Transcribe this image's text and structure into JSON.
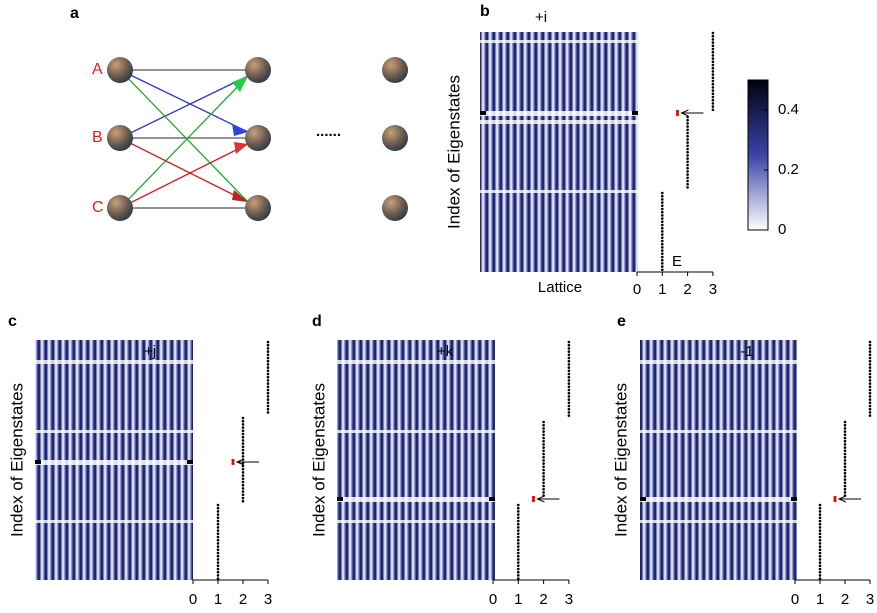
{
  "panel_a": {
    "label": "a",
    "nodes": [
      "A",
      "B",
      "C"
    ],
    "ellipsis": "......"
  },
  "panels": [
    {
      "label": "b",
      "title": "+i",
      "ylabel": "Index of Eigenstates",
      "xlabel": "Lattice",
      "energy_label": "E",
      "xticks": [
        0,
        1,
        2,
        3
      ]
    },
    {
      "label": "c",
      "title": "+j",
      "ylabel": "Index of Eigenstates",
      "xticks": [
        0,
        1,
        2,
        3
      ]
    },
    {
      "label": "d",
      "title": "+k",
      "ylabel": "Index of Eigenstates",
      "xticks": [
        0,
        1,
        2,
        3
      ]
    },
    {
      "label": "e",
      "title": "-1",
      "ylabel": "Index of Eigenstates",
      "xticks": [
        0,
        1,
        2,
        3
      ]
    }
  ],
  "colorbar": {
    "range": [
      0,
      0.5
    ],
    "ticks": [
      0,
      0.2,
      0.4
    ]
  }
}
